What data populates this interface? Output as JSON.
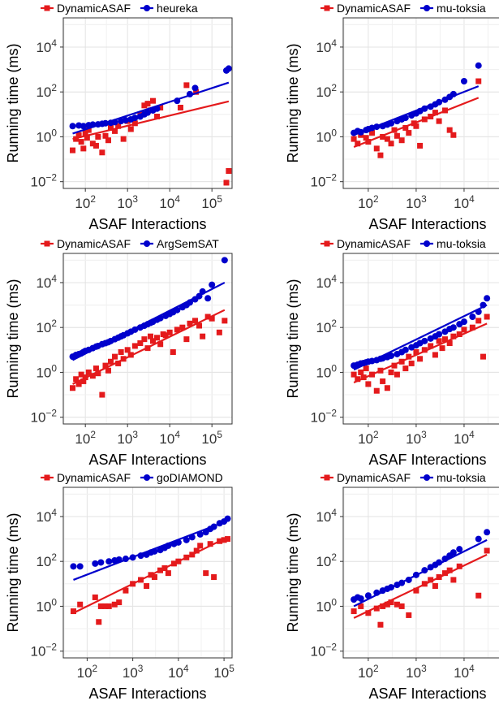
{
  "figure": {
    "description_visible_only": true
  },
  "chart_data": [
    {
      "type": "scatter",
      "xlabel": "ASAF Interactions",
      "ylabel": "Running time (ms)",
      "xscale": "log",
      "yscale": "log",
      "xlim": [
        30,
        300000
      ],
      "ylim": [
        0.005,
        200000
      ],
      "xticks": [
        "10^2",
        "10^3",
        "10^4",
        "10^5"
      ],
      "yticks": [
        "10^-2",
        "10^0",
        "10^2",
        "10^4"
      ],
      "grid": true,
      "legend_position": "top",
      "series": [
        {
          "name": "DynamicASAF",
          "color": "#e41a1c",
          "marker": "square",
          "x": [
            50,
            60,
            70,
            80,
            90,
            100,
            110,
            120,
            150,
            180,
            200,
            250,
            300,
            350,
            400,
            500,
            600,
            800,
            1000,
            1200,
            1500,
            2000,
            2500,
            3000,
            3500,
            4000,
            5000,
            6000,
            18000,
            25000,
            42000,
            220000,
            250000
          ],
          "y": [
            0.25,
            0.8,
            1.2,
            0.6,
            0.3,
            1.5,
            0.9,
            2.0,
            0.5,
            0.4,
            1.0,
            0.2,
            1.1,
            0.7,
            2.5,
            1.8,
            3.0,
            0.8,
            5.0,
            2.2,
            4.0,
            10.0,
            25.0,
            30.0,
            15.0,
            40.0,
            8.0,
            20.0,
            20.0,
            200.0,
            100.0,
            0.009,
            0.03
          ],
          "trend": [
            [
              50,
              0.8
            ],
            [
              250000,
              38
            ]
          ]
        },
        {
          "name": "heureka",
          "color": "#0000cc",
          "marker": "circle",
          "x": [
            50,
            70,
            90,
            120,
            150,
            200,
            250,
            300,
            400,
            500,
            700,
            900,
            1200,
            1500,
            2000,
            2500,
            3000,
            4000,
            5000,
            15000,
            30000,
            40000,
            220000,
            250000
          ],
          "y": [
            3.0,
            3.2,
            3.0,
            3.3,
            3.5,
            3.6,
            3.8,
            4.0,
            4.2,
            4.5,
            5.0,
            5.5,
            6.0,
            7.0,
            8.0,
            10.0,
            12.0,
            15.0,
            18.0,
            40.0,
            80.0,
            150.0,
            900.0,
            1100.0
          ],
          "trend": [
            [
              50,
              1.4
            ],
            [
              250000,
              260
            ]
          ]
        }
      ]
    },
    {
      "type": "scatter",
      "xlabel": "ASAF Interactions",
      "ylabel": "Running time (ms)",
      "xscale": "log",
      "yscale": "log",
      "xlim": [
        30,
        100000
      ],
      "ylim": [
        0.005,
        200000
      ],
      "xticks": [
        "10^2",
        "10^3",
        "10^4",
        "10^5"
      ],
      "yticks": [
        "10^-2",
        "10^0",
        "10^2",
        "10^4"
      ],
      "grid": true,
      "legend_position": "top",
      "series": [
        {
          "name": "DynamicASAF",
          "color": "#e41a1c",
          "marker": "square",
          "x": [
            50,
            60,
            70,
            90,
            100,
            120,
            150,
            180,
            200,
            250,
            300,
            350,
            400,
            500,
            600,
            700,
            900,
            1000,
            1200,
            1500,
            2000,
            2500,
            3000,
            4000,
            5000,
            6000,
            20000
          ],
          "y": [
            0.8,
            0.5,
            1.2,
            0.9,
            0.6,
            1.5,
            0.3,
            0.15,
            1.0,
            0.8,
            0.5,
            2.0,
            1.1,
            0.7,
            2.5,
            1.5,
            4.0,
            3.0,
            0.4,
            6.0,
            8.0,
            12.0,
            5.0,
            15.0,
            2.0,
            1.2,
            300.0
          ],
          "trend": [
            [
              50,
              0.35
            ],
            [
              20000,
              55
            ]
          ]
        },
        {
          "name": "mu-toksia",
          "color": "#0000cc",
          "marker": "circle",
          "x": [
            50,
            60,
            70,
            90,
            100,
            120,
            150,
            200,
            250,
            300,
            400,
            500,
            600,
            800,
            1000,
            1200,
            1500,
            2000,
            2500,
            3000,
            4000,
            5000,
            6000,
            10000,
            20000
          ],
          "y": [
            1.5,
            1.8,
            1.6,
            2.0,
            2.2,
            2.5,
            2.8,
            3.0,
            3.5,
            4.0,
            5.0,
            6.0,
            7.0,
            9.0,
            11.0,
            14.0,
            18.0,
            22.0,
            28.0,
            35.0,
            45.0,
            60.0,
            80.0,
            300.0,
            1500.0
          ],
          "trend": [
            [
              50,
              1.2
            ],
            [
              20000,
              180
            ]
          ]
        }
      ]
    },
    {
      "type": "scatter",
      "xlabel": "ASAF Interactions",
      "ylabel": "Running time (ms)",
      "xscale": "log",
      "yscale": "log",
      "xlim": [
        30,
        300000
      ],
      "ylim": [
        0.005,
        200000
      ],
      "xticks": [
        "10^2",
        "10^3",
        "10^4",
        "10^5"
      ],
      "yticks": [
        "10^-2",
        "10^0",
        "10^2",
        "10^4"
      ],
      "grid": true,
      "legend_position": "top",
      "series": [
        {
          "name": "DynamicASAF",
          "color": "#e41a1c",
          "marker": "square",
          "x": [
            50,
            60,
            70,
            80,
            90,
            100,
            120,
            150,
            180,
            200,
            250,
            300,
            350,
            400,
            500,
            600,
            700,
            800,
            1000,
            1200,
            1500,
            2000,
            2500,
            3000,
            3500,
            4000,
            5000,
            6000,
            7000,
            8000,
            10000,
            12000,
            15000,
            20000,
            25000,
            30000,
            40000,
            50000,
            60000,
            80000,
            100000,
            150000,
            200000
          ],
          "y": [
            0.2,
            0.5,
            0.3,
            0.8,
            0.4,
            0.6,
            1.0,
            0.7,
            1.5,
            0.9,
            0.1,
            2.0,
            1.2,
            3.0,
            5.0,
            2.5,
            8.0,
            4.0,
            10.0,
            6.0,
            15.0,
            20.0,
            30.0,
            12.0,
            40.0,
            25.0,
            35.0,
            18.0,
            50.0,
            45.0,
            60.0,
            8.0,
            80.0,
            100.0,
            30.0,
            150.0,
            200.0,
            120.0,
            40.0,
            300.0,
            250.0,
            60.0,
            200.0
          ],
          "trend": [
            [
              50,
              0.3
            ],
            [
              200000,
              600
            ]
          ]
        },
        {
          "name": "ArgSemSAT",
          "color": "#0000cc",
          "marker": "circle",
          "x": [
            50,
            60,
            70,
            80,
            90,
            100,
            120,
            150,
            180,
            200,
            250,
            300,
            350,
            400,
            500,
            600,
            700,
            800,
            1000,
            1200,
            1500,
            2000,
            2500,
            3000,
            3500,
            4000,
            5000,
            6000,
            8000,
            10000,
            12000,
            15000,
            20000,
            25000,
            30000,
            40000,
            50000,
            60000,
            80000,
            100000,
            200000
          ],
          "y": [
            5.0,
            6.0,
            6.5,
            7.0,
            8.0,
            9.0,
            10.0,
            12.0,
            14.0,
            15.0,
            18.0,
            20.0,
            22.0,
            25.0,
            30.0,
            35.0,
            40.0,
            45.0,
            55.0,
            65.0,
            80.0,
            100.0,
            120.0,
            140.0,
            160.0,
            180.0,
            220.0,
            260.0,
            330.0,
            400.0,
            480.0,
            600.0,
            800.0,
            1000.0,
            1300.0,
            1800.0,
            2500.0,
            4000.0,
            2000.0,
            8000.0,
            100000.0
          ],
          "trend": [
            [
              50,
              3.5
            ],
            [
              200000,
              10000
            ]
          ]
        }
      ]
    },
    {
      "type": "scatter",
      "xlabel": "ASAF Interactions",
      "ylabel": "Running time (ms)",
      "xscale": "log",
      "yscale": "log",
      "xlim": [
        30,
        100000
      ],
      "ylim": [
        0.005,
        200000
      ],
      "xticks": [
        "10^2",
        "10^3",
        "10^4",
        "10^5"
      ],
      "yticks": [
        "10^-2",
        "10^0",
        "10^2",
        "10^4"
      ],
      "grid": true,
      "legend_position": "top",
      "series": [
        {
          "name": "DynamicASAF",
          "color": "#e41a1c",
          "marker": "square",
          "x": [
            50,
            60,
            70,
            80,
            90,
            100,
            120,
            150,
            180,
            200,
            250,
            300,
            350,
            400,
            500,
            600,
            700,
            800,
            1000,
            1200,
            1500,
            2000,
            2500,
            3000,
            3500,
            4000,
            5000,
            6000,
            8000,
            10000,
            15000,
            20000,
            25000,
            30000
          ],
          "y": [
            0.8,
            0.5,
            1.0,
            0.6,
            1.5,
            0.3,
            0.8,
            0.15,
            1.2,
            0.4,
            0.2,
            1.0,
            2.0,
            0.8,
            3.0,
            1.5,
            5.0,
            2.5,
            8.0,
            4.0,
            10.0,
            15.0,
            6.0,
            25.0,
            12.0,
            30.0,
            20.0,
            40.0,
            50.0,
            80.0,
            100.0,
            200.0,
            5.0,
            300.0
          ],
          "trend": [
            [
              50,
              0.35
            ],
            [
              30000,
              150
            ]
          ]
        },
        {
          "name": "mu-toksia",
          "color": "#0000cc",
          "marker": "circle",
          "x": [
            50,
            60,
            70,
            80,
            90,
            100,
            120,
            150,
            180,
            200,
            250,
            300,
            400,
            500,
            600,
            800,
            1000,
            1200,
            1500,
            2000,
            2500,
            3000,
            4000,
            5000,
            6000,
            8000,
            10000,
            15000,
            20000,
            25000,
            30000
          ],
          "y": [
            2.0,
            2.2,
            2.5,
            2.6,
            2.8,
            3.0,
            3.2,
            3.5,
            4.0,
            4.2,
            4.8,
            5.5,
            6.5,
            8.0,
            10.0,
            13.0,
            16.0,
            20.0,
            25.0,
            32.0,
            40.0,
            50.0,
            65.0,
            85.0,
            100.0,
            140.0,
            180.0,
            300.0,
            500.0,
            1000.0,
            2000.0
          ],
          "trend": [
            [
              50,
              1.3
            ],
            [
              30000,
              1000
            ]
          ]
        }
      ]
    },
    {
      "type": "scatter",
      "xlabel": "ASAF Interactions",
      "ylabel": "Running time (ms)",
      "xscale": "log",
      "yscale": "log",
      "xlim": [
        30,
        150000
      ],
      "ylim": [
        0.005,
        200000
      ],
      "xticks": [
        "10^2",
        "10^3",
        "10^4",
        "10^5"
      ],
      "yticks": [
        "10^-2",
        "10^0",
        "10^2",
        "10^4"
      ],
      "grid": true,
      "legend_position": "top",
      "series": [
        {
          "name": "DynamicASAF",
          "color": "#e41a1c",
          "marker": "square",
          "x": [
            50,
            70,
            150,
            180,
            200,
            250,
            300,
            400,
            500,
            700,
            1000,
            1500,
            2000,
            2500,
            3000,
            4000,
            5000,
            6000,
            8000,
            10000,
            15000,
            20000,
            25000,
            30000,
            40000,
            50000,
            60000,
            80000,
            100000,
            120000
          ],
          "y": [
            0.6,
            1.2,
            2.5,
            0.2,
            1.0,
            1.0,
            1.0,
            1.2,
            1.5,
            5.0,
            10.0,
            15.0,
            8.0,
            25.0,
            20.0,
            40.0,
            50.0,
            30.0,
            80.0,
            100.0,
            150.0,
            200.0,
            300.0,
            500.0,
            30.0,
            600.0,
            20.0,
            800.0,
            900.0,
            1000.0
          ],
          "trend": [
            [
              50,
              0.5
            ],
            [
              120000,
              1200
            ]
          ]
        },
        {
          "name": "goDIAMOND",
          "color": "#0000cc",
          "marker": "circle",
          "x": [
            50,
            70,
            150,
            200,
            300,
            400,
            500,
            700,
            1000,
            1500,
            2000,
            2500,
            3000,
            4000,
            5000,
            6000,
            8000,
            10000,
            15000,
            20000,
            30000,
            40000,
            50000,
            60000,
            80000,
            100000,
            120000
          ],
          "y": [
            60.0,
            60.0,
            80.0,
            90.0,
            100.0,
            110.0,
            120.0,
            130.0,
            150.0,
            180.0,
            200.0,
            250.0,
            280.0,
            320.0,
            400.0,
            500.0,
            600.0,
            700.0,
            900.0,
            1200.0,
            1600.0,
            2000.0,
            2800.0,
            3500.0,
            5000.0,
            6000.0,
            8000.0
          ],
          "trend": [
            [
              50,
              15
            ],
            [
              120000,
              6500
            ]
          ]
        }
      ]
    },
    {
      "type": "scatter",
      "xlabel": "ASAF Interactions",
      "ylabel": "Running time (ms)",
      "xscale": "log",
      "yscale": "log",
      "xlim": [
        30,
        100000
      ],
      "ylim": [
        0.005,
        200000
      ],
      "xticks": [
        "10^2",
        "10^3",
        "10^4",
        "10^5"
      ],
      "yticks": [
        "10^-2",
        "10^0",
        "10^2",
        "10^4"
      ],
      "grid": true,
      "legend_position": "top",
      "series": [
        {
          "name": "DynamicASAF",
          "color": "#e41a1c",
          "marker": "square",
          "x": [
            50,
            70,
            100,
            150,
            180,
            200,
            250,
            300,
            400,
            500,
            700,
            1000,
            1500,
            2000,
            2500,
            3000,
            4000,
            5000,
            6000,
            8000,
            20000,
            30000
          ],
          "y": [
            0.6,
            1.0,
            0.5,
            0.8,
            0.15,
            1.0,
            1.2,
            1.5,
            1.2,
            1.0,
            0.4,
            5.0,
            10.0,
            15.0,
            8.0,
            20.0,
            30.0,
            40.0,
            15.0,
            60.0,
            3.0,
            300.0
          ],
          "trend": [
            [
              50,
              0.3
            ],
            [
              30000,
              200
            ]
          ]
        },
        {
          "name": "mu-toksia",
          "color": "#0000cc",
          "marker": "circle",
          "x": [
            50,
            60,
            70,
            100,
            150,
            200,
            250,
            300,
            400,
            500,
            700,
            1000,
            1500,
            2000,
            2500,
            3000,
            4000,
            5000,
            6000,
            8000,
            20000,
            30000
          ],
          "y": [
            2.0,
            2.5,
            2.2,
            3.0,
            4.0,
            5.0,
            6.0,
            7.0,
            9.0,
            11.0,
            15.0,
            25.0,
            40.0,
            55.0,
            70.0,
            90.0,
            130.0,
            180.0,
            250.0,
            350.0,
            1000.0,
            2000.0
          ],
          "trend": [
            [
              50,
              1.0
            ],
            [
              30000,
              900
            ]
          ]
        }
      ]
    }
  ]
}
